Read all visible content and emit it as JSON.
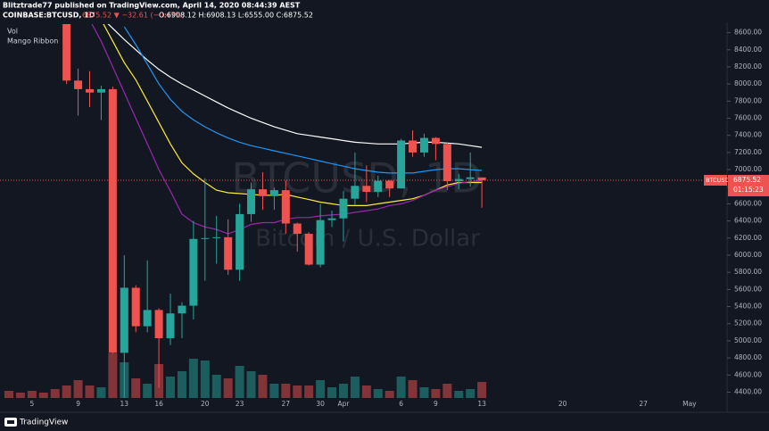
{
  "header": {
    "published": "Blitztrade77 published on TradingView.com, April 14, 2020 08:44:39 AEST",
    "symbol": "COINBASE:BTCUSD, 1D",
    "change": "6875.52 ▼ −32.61 (−0.47%)",
    "ohlc": "O:6908.12 H:6908.13 L:6555.00 C:6875.52"
  },
  "footer": "TradingView",
  "chart_data": {
    "type": "candlestick",
    "legend": [
      "Vol",
      "Mango Ribbon"
    ],
    "watermark": [
      "BTCUSD, 1D",
      "Bitcoin / U.S. Dollar"
    ],
    "categories": [
      null,
      null,
      "5",
      null,
      null,
      null,
      "9",
      null,
      null,
      null,
      "13",
      null,
      null,
      "16",
      null,
      null,
      null,
      "20",
      null,
      null,
      "23",
      null,
      null,
      null,
      "27",
      null,
      null,
      "30",
      null,
      "Apr",
      null,
      null,
      null,
      null,
      "6",
      null,
      null,
      "9",
      null,
      null,
      null,
      "13",
      null,
      null,
      null,
      null,
      null,
      null,
      "20",
      null,
      null,
      null,
      null,
      null,
      null,
      "27",
      null,
      null,
      null,
      "May"
    ],
    "open": [
      null,
      null,
      null,
      null,
      null,
      8900,
      8040,
      7940,
      7900,
      7940,
      4860,
      5620,
      5170,
      5360,
      5030,
      5320,
      5410,
      6190,
      6200,
      6210,
      5830,
      6480,
      6770,
      6690,
      6760,
      6370,
      6250,
      5890,
      6410,
      6430,
      6660,
      6810,
      6740,
      6870,
      6780,
      7340,
      7200,
      7370,
      7300,
      6865,
      6890,
      6908.12,
      null,
      null,
      null,
      null,
      null,
      null,
      null,
      null,
      null,
      null,
      null,
      null,
      null,
      null,
      null,
      null,
      null,
      null
    ],
    "high": [
      null,
      null,
      null,
      null,
      null,
      8900,
      8180,
      8150,
      7980,
      7970,
      6000,
      5650,
      5940,
      5380,
      5550,
      5450,
      6400,
      6900,
      6460,
      6420,
      6600,
      6850,
      6970,
      6790,
      6870,
      6380,
      6270,
      6600,
      6520,
      6750,
      7200,
      7050,
      6930,
      6880,
      7360,
      7460,
      7420,
      7380,
      7320,
      6950,
      7200,
      6908.13,
      null,
      null,
      null,
      null,
      null,
      null,
      null,
      null,
      null,
      null,
      null,
      null,
      null,
      null,
      null,
      null,
      null,
      null
    ],
    "low": [
      null,
      null,
      null,
      null,
      null,
      8000,
      7630,
      7730,
      7580,
      4850,
      3850,
      5100,
      5100,
      4450,
      4950,
      5030,
      5250,
      5700,
      5900,
      5770,
      5700,
      6390,
      6530,
      6530,
      6250,
      6040,
      5880,
      5860,
      6330,
      6160,
      6590,
      6620,
      6680,
      6680,
      6780,
      7150,
      7150,
      7110,
      6760,
      6770,
      6800,
      6555,
      null,
      null,
      null,
      null,
      null,
      null,
      null,
      null,
      null,
      null,
      null,
      null,
      null,
      null,
      null,
      null,
      null,
      null
    ],
    "close": [
      null,
      null,
      null,
      null,
      null,
      8040,
      7940,
      7900,
      7940,
      4860,
      5620,
      5170,
      5360,
      5030,
      5320,
      5410,
      6190,
      6200,
      6210,
      5830,
      6480,
      6770,
      6690,
      6760,
      6370,
      6250,
      5890,
      6410,
      6430,
      6660,
      6810,
      6740,
      6870,
      6780,
      7340,
      7200,
      7370,
      7300,
      6865,
      6890,
      6910,
      6875.52,
      null,
      null,
      null,
      null,
      null,
      null,
      null,
      null,
      null,
      null,
      null,
      null,
      null,
      null,
      null,
      null,
      null,
      null
    ],
    "volume": [
      8000,
      6000,
      8000,
      6000,
      10000,
      14000,
      20000,
      14000,
      12000,
      50000,
      40000,
      22000,
      16000,
      38000,
      24000,
      30000,
      44000,
      42000,
      26000,
      22000,
      36000,
      30000,
      26000,
      16000,
      16000,
      14000,
      14000,
      20000,
      12000,
      16000,
      24000,
      14000,
      10000,
      8000,
      24000,
      20000,
      12000,
      10000,
      16000,
      8000,
      10000,
      18000,
      null,
      null,
      null,
      null,
      null,
      null,
      null,
      null,
      null,
      null,
      null,
      null,
      null,
      null,
      null,
      null,
      null,
      null
    ],
    "up_color": "#26a69a",
    "down_color": "#ef5350",
    "series": [
      {
        "color": "#ffffff",
        "values": [
          null,
          null,
          null,
          null,
          null,
          null,
          null,
          null,
          8780,
          8650,
          8520,
          8400,
          8280,
          8170,
          8080,
          8000,
          7930,
          7860,
          7790,
          7720,
          7660,
          7600,
          7550,
          7500,
          7460,
          7420,
          7400,
          7380,
          7360,
          7340,
          7320,
          7310,
          7300,
          7300,
          7300,
          7310,
          7320,
          7320,
          7310,
          7300,
          7280,
          7260,
          null,
          null,
          null,
          null,
          null,
          null,
          null,
          null,
          null,
          null,
          null,
          null,
          null,
          null,
          null,
          null,
          null,
          null
        ]
      },
      {
        "color": "#2196f3",
        "values": [
          null,
          null,
          null,
          null,
          null,
          null,
          null,
          null,
          null,
          null,
          8670,
          8460,
          8230,
          8000,
          7820,
          7680,
          7580,
          7500,
          7430,
          7370,
          7320,
          7280,
          7250,
          7220,
          7190,
          7160,
          7130,
          7100,
          7070,
          7040,
          7010,
          6990,
          6970,
          6960,
          6960,
          6960,
          6980,
          7000,
          7010,
          7010,
          7000,
          6990,
          null,
          null,
          null,
          null,
          null,
          null,
          null,
          null,
          null,
          null,
          null,
          null,
          null,
          null,
          null,
          null,
          null,
          null
        ]
      },
      {
        "color": "#ffeb3b",
        "values": [
          null,
          null,
          null,
          null,
          null,
          null,
          null,
          null,
          8750,
          8500,
          8250,
          8050,
          7800,
          7550,
          7300,
          7080,
          6950,
          6850,
          6760,
          6730,
          6720,
          6710,
          6700,
          6700,
          6710,
          6680,
          6650,
          6620,
          6600,
          6580,
          6580,
          6580,
          6600,
          6620,
          6640,
          6660,
          6700,
          6760,
          6820,
          6850,
          6850,
          6850,
          null,
          null,
          null,
          null,
          null,
          null,
          null,
          null,
          null,
          null,
          null,
          null,
          null,
          null,
          null,
          null,
          null,
          null
        ]
      },
      {
        "color": "#9c27b0",
        "values": [
          null,
          null,
          null,
          null,
          null,
          null,
          null,
          8750,
          8500,
          8200,
          7900,
          7600,
          7300,
          7000,
          6750,
          6480,
          6380,
          6330,
          6300,
          6250,
          6300,
          6360,
          6380,
          6380,
          6420,
          6440,
          6440,
          6460,
          6470,
          6480,
          6500,
          6520,
          6540,
          6580,
          6600,
          6640,
          6700,
          6760,
          6800,
          6840,
          6860,
          6870,
          null,
          null,
          null,
          null,
          null,
          null,
          null,
          null,
          null,
          null,
          null,
          null,
          null,
          null,
          null,
          null,
          null,
          null
        ]
      }
    ],
    "ylim": [
      4332,
      8700
    ],
    "yticks": [
      {
        "value": 4400,
        "label": "4400.00"
      },
      {
        "value": 4600,
        "label": "4600.00"
      },
      {
        "value": 4800,
        "label": "4800.00"
      },
      {
        "value": 5000,
        "label": "5000.00"
      },
      {
        "value": 5200,
        "label": "5200.00"
      },
      {
        "value": 5400,
        "label": "5400.00"
      },
      {
        "value": 5600,
        "label": "5600.00"
      },
      {
        "value": 5800,
        "label": "5800.00"
      },
      {
        "value": 6000,
        "label": "6000.00"
      },
      {
        "value": 6200,
        "label": "6200.00"
      },
      {
        "value": 6400,
        "label": "6400.00"
      },
      {
        "value": 6600,
        "label": "6600.00"
      },
      {
        "value": 6800,
        "label": "6800.00"
      },
      {
        "value": 7000,
        "label": "7000.00"
      },
      {
        "value": 7200,
        "label": "7200.00"
      },
      {
        "value": 7400,
        "label": "7400.00"
      },
      {
        "value": 7600,
        "label": "7600.00"
      },
      {
        "value": 7800,
        "label": "7800.00"
      },
      {
        "value": 8000,
        "label": "8000.00"
      },
      {
        "value": 8200,
        "label": "8200.00"
      },
      {
        "value": 8400,
        "label": "8400.00"
      },
      {
        "value": 8600,
        "label": "8600.00"
      }
    ],
    "grid": false,
    "price_line": {
      "symbol": "BTCUSD",
      "value": 6875.52,
      "countdown": "01:15:23",
      "color": "#ef5350"
    }
  }
}
